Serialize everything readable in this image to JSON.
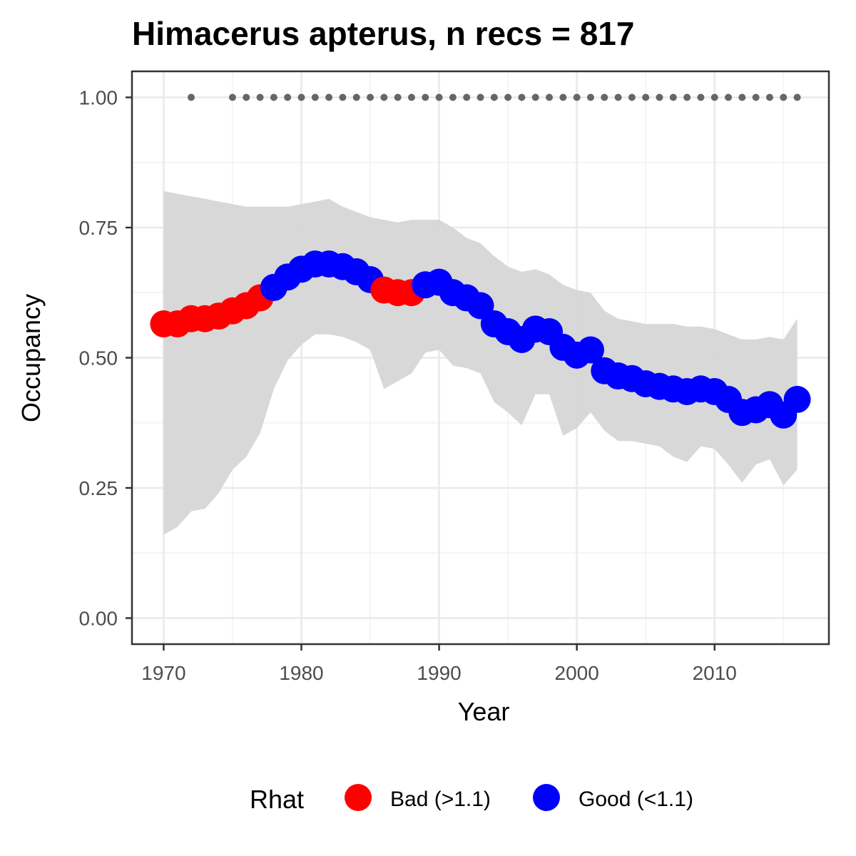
{
  "chart_data": {
    "type": "scatter",
    "title": "Himacerus apterus, n recs = 817",
    "xlabel": "Year",
    "ylabel": "Occupancy",
    "xlim": [
      1967.7,
      2018.3
    ],
    "ylim": [
      -0.05,
      1.05
    ],
    "x_ticks": [
      1970,
      1980,
      1990,
      2000,
      2010
    ],
    "x_tick_labels": [
      "1970",
      "1980",
      "1990",
      "2000",
      "2010"
    ],
    "y_ticks": [
      0,
      0.25,
      0.5,
      0.75,
      1
    ],
    "y_tick_labels": [
      "0.00",
      "0.25",
      "0.50",
      "0.75",
      "1.00"
    ],
    "grid": true,
    "legend": {
      "title": "Rhat",
      "position": "bottom",
      "entries": [
        {
          "key": "bad",
          "label": "Bad (>1.1)",
          "color": "#ff0000"
        },
        {
          "key": "good",
          "label": "Good (<1.1)",
          "color": "#0000ff"
        }
      ]
    },
    "colors": {
      "bad": "#ff0000",
      "good": "#0000ff",
      "ribbon": "#d6d6d6",
      "record_dots": "#666666"
    },
    "years": [
      1970,
      1971,
      1972,
      1973,
      1974,
      1975,
      1976,
      1977,
      1978,
      1979,
      1980,
      1981,
      1982,
      1983,
      1984,
      1985,
      1986,
      1987,
      1988,
      1989,
      1990,
      1991,
      1992,
      1993,
      1994,
      1995,
      1996,
      1997,
      1998,
      1999,
      2000,
      2001,
      2002,
      2003,
      2004,
      2005,
      2006,
      2007,
      2008,
      2009,
      2010,
      2011,
      2012,
      2013,
      2014,
      2015,
      2016
    ],
    "occupancy": [
      0.565,
      0.565,
      0.575,
      0.575,
      0.58,
      0.59,
      0.6,
      0.615,
      0.635,
      0.655,
      0.67,
      0.68,
      0.68,
      0.675,
      0.665,
      0.65,
      0.63,
      0.625,
      0.625,
      0.64,
      0.645,
      0.625,
      0.615,
      0.6,
      0.565,
      0.55,
      0.535,
      0.555,
      0.55,
      0.52,
      0.505,
      0.515,
      0.475,
      0.465,
      0.46,
      0.45,
      0.445,
      0.44,
      0.435,
      0.44,
      0.435,
      0.42,
      0.395,
      0.4,
      0.41,
      0.39,
      0.42
    ],
    "rhat": [
      "bad",
      "bad",
      "bad",
      "bad",
      "bad",
      "bad",
      "bad",
      "bad",
      "good",
      "good",
      "good",
      "good",
      "good",
      "good",
      "good",
      "good",
      "bad",
      "bad",
      "bad",
      "good",
      "good",
      "good",
      "good",
      "good",
      "good",
      "good",
      "good",
      "good",
      "good",
      "good",
      "good",
      "good",
      "good",
      "good",
      "good",
      "good",
      "good",
      "good",
      "good",
      "good",
      "good",
      "good",
      "good",
      "good",
      "good",
      "good",
      "good"
    ],
    "lower_ci": [
      0.16,
      0.175,
      0.205,
      0.21,
      0.24,
      0.285,
      0.31,
      0.355,
      0.44,
      0.495,
      0.525,
      0.545,
      0.545,
      0.54,
      0.53,
      0.515,
      0.44,
      0.455,
      0.47,
      0.51,
      0.515,
      0.485,
      0.48,
      0.47,
      0.415,
      0.395,
      0.37,
      0.43,
      0.43,
      0.35,
      0.365,
      0.395,
      0.36,
      0.34,
      0.34,
      0.335,
      0.33,
      0.31,
      0.3,
      0.33,
      0.325,
      0.295,
      0.26,
      0.295,
      0.305,
      0.255,
      0.285
    ],
    "upper_ci": [
      0.82,
      0.815,
      0.81,
      0.805,
      0.8,
      0.795,
      0.79,
      0.79,
      0.79,
      0.79,
      0.795,
      0.8,
      0.805,
      0.79,
      0.78,
      0.77,
      0.765,
      0.76,
      0.765,
      0.765,
      0.765,
      0.75,
      0.73,
      0.72,
      0.695,
      0.675,
      0.665,
      0.67,
      0.66,
      0.64,
      0.63,
      0.625,
      0.59,
      0.575,
      0.57,
      0.565,
      0.565,
      0.565,
      0.56,
      0.56,
      0.555,
      0.545,
      0.535,
      0.535,
      0.54,
      0.535,
      0.575
    ],
    "record_years": [
      1972,
      1975,
      1976,
      1977,
      1978,
      1979,
      1980,
      1981,
      1982,
      1983,
      1984,
      1985,
      1986,
      1987,
      1988,
      1989,
      1990,
      1991,
      1992,
      1993,
      1994,
      1995,
      1996,
      1997,
      1998,
      1999,
      2000,
      2001,
      2002,
      2003,
      2004,
      2005,
      2006,
      2007,
      2008,
      2009,
      2010,
      2011,
      2012,
      2013,
      2014,
      2015,
      2016
    ],
    "record_value": 1.0
  }
}
